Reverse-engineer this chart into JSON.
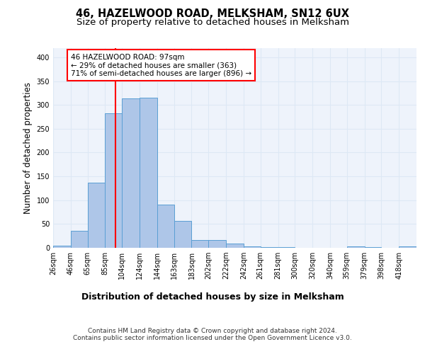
{
  "title1": "46, HAZELWOOD ROAD, MELKSHAM, SN12 6UX",
  "title2": "Size of property relative to detached houses in Melksham",
  "xlabel": "Distribution of detached houses by size in Melksham",
  "ylabel": "Number of detached properties",
  "bin_labels": [
    "26sqm",
    "46sqm",
    "65sqm",
    "85sqm",
    "104sqm",
    "124sqm",
    "144sqm",
    "163sqm",
    "183sqm",
    "202sqm",
    "222sqm",
    "242sqm",
    "261sqm",
    "281sqm",
    "300sqm",
    "320sqm",
    "340sqm",
    "359sqm",
    "379sqm",
    "398sqm",
    "418sqm"
  ],
  "bin_edges": [
    26,
    46,
    65,
    85,
    104,
    124,
    144,
    163,
    183,
    202,
    222,
    242,
    261,
    281,
    300,
    320,
    340,
    359,
    379,
    398,
    418,
    438
  ],
  "bar_heights": [
    5,
    35,
    137,
    283,
    313,
    315,
    90,
    57,
    17,
    17,
    9,
    3,
    2,
    1,
    0,
    0,
    0,
    3,
    2,
    0,
    3
  ],
  "bar_color": "#aec6e8",
  "bar_edgecolor": "#5a9fd4",
  "vline_x": 97,
  "vline_color": "red",
  "annotation_text": "46 HAZELWOOD ROAD: 97sqm\n← 29% of detached houses are smaller (363)\n71% of semi-detached houses are larger (896) →",
  "annotation_box_edgecolor": "red",
  "ylim": [
    0,
    420
  ],
  "yticks": [
    0,
    50,
    100,
    150,
    200,
    250,
    300,
    350,
    400
  ],
  "grid_color": "#dde8f5",
  "bg_color": "#eef3fb",
  "footer1": "Contains HM Land Registry data © Crown copyright and database right 2024.",
  "footer2": "Contains public sector information licensed under the Open Government Licence v3.0."
}
